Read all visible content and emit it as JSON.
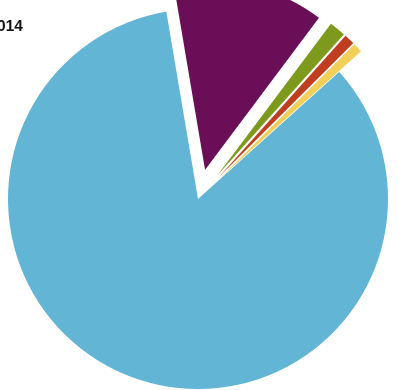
{
  "chart_data": {
    "type": "pie",
    "title": "014",
    "legend": "none",
    "slices": [
      {
        "value": 84.0,
        "color": "#62b5d5",
        "exploded": false
      },
      {
        "value": 12.9,
        "color": "#6a0e58",
        "exploded": true
      },
      {
        "value": 1.4,
        "color": "#7e9a1d",
        "exploded": true
      },
      {
        "value": 0.9,
        "color": "#be3e1f",
        "exploded": true
      },
      {
        "value": 0.8,
        "color": "#f2cf58",
        "exploded": true
      }
    ]
  }
}
